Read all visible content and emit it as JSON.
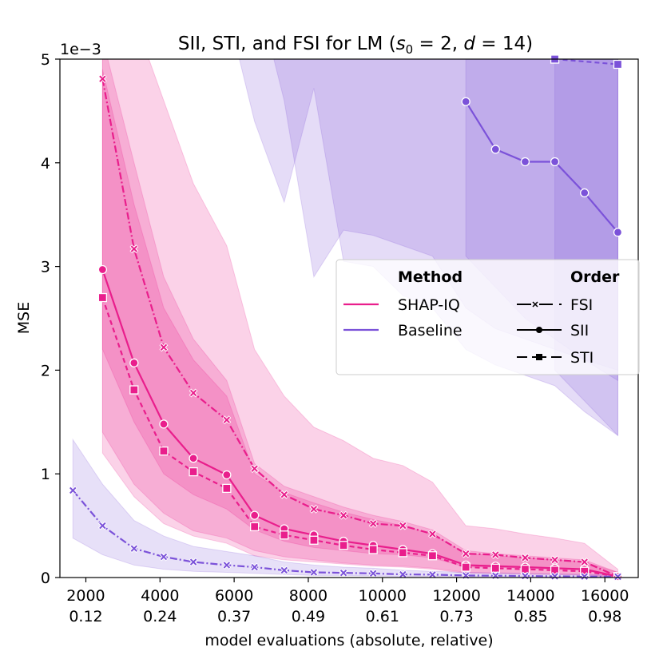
{
  "chart_data": {
    "type": "line",
    "title_prefix": "SII, STI, and FSI for LM (",
    "title_math": "s",
    "title_sub": "0",
    "title_mid": " = 2, ",
    "title_d": "d",
    "title_suffix": " = 14)",
    "xlabel": "model evaluations (absolute, relative)",
    "ylabel": "MSE",
    "y_scale_label": "1e−3",
    "xlim": [
      1300,
      16900
    ],
    "ylim": [
      0,
      5
    ],
    "x_ticks": [
      {
        "value": 2000,
        "abs": "2000",
        "rel": "0.12"
      },
      {
        "value": 4000,
        "abs": "4000",
        "rel": "0.24"
      },
      {
        "value": 6000,
        "abs": "6000",
        "rel": "0.37"
      },
      {
        "value": 8000,
        "abs": "8000",
        "rel": "0.49"
      },
      {
        "value": 10000,
        "abs": "10000",
        "rel": "0.61"
      },
      {
        "value": 12000,
        "abs": "12000",
        "rel": "0.73"
      },
      {
        "value": 14000,
        "abs": "14000",
        "rel": "0.85"
      },
      {
        "value": 16000,
        "abs": "16000",
        "rel": "0.98"
      }
    ],
    "y_ticks": [
      "0",
      "1",
      "2",
      "3",
      "4",
      "5"
    ],
    "colors": {
      "shapiq": "#e91e8c",
      "baseline": "#7b52d9"
    },
    "series": [
      {
        "method": "SHAP-IQ",
        "order": "SII",
        "x": [
          2450,
          3300,
          4100,
          4900,
          5800,
          6550,
          7350,
          8150,
          8950,
          9750,
          10550,
          11350,
          12250,
          13050,
          13850,
          14650,
          15450,
          16350
        ],
        "y": [
          2.97,
          2.07,
          1.48,
          1.15,
          0.99,
          0.6,
          0.47,
          0.41,
          0.35,
          0.31,
          0.27,
          0.23,
          0.12,
          0.11,
          0.1,
          0.09,
          0.08,
          0.01
        ],
        "lower": [
          1.4,
          0.9,
          0.62,
          0.45,
          0.38,
          0.26,
          0.2,
          0.17,
          0.14,
          0.12,
          0.11,
          0.09,
          0.05,
          0.04,
          0.04,
          0.03,
          0.03,
          0.0
        ],
        "upper": [
          5.2,
          4.0,
          2.9,
          2.3,
          1.9,
          1.1,
          0.88,
          0.78,
          0.68,
          0.6,
          0.54,
          0.46,
          0.26,
          0.23,
          0.21,
          0.19,
          0.17,
          0.05
        ]
      },
      {
        "method": "SHAP-IQ",
        "order": "STI",
        "x": [
          2450,
          3300,
          4100,
          4900,
          5800,
          6550,
          7350,
          8150,
          8950,
          9750,
          10550,
          11350,
          12250,
          13050,
          13850,
          14650,
          15450,
          16350
        ],
        "y": [
          2.7,
          1.81,
          1.22,
          1.02,
          0.86,
          0.49,
          0.41,
          0.36,
          0.31,
          0.27,
          0.24,
          0.21,
          0.1,
          0.09,
          0.08,
          0.07,
          0.06,
          0.01
        ],
        "lower": [
          1.2,
          0.78,
          0.52,
          0.4,
          0.33,
          0.21,
          0.17,
          0.15,
          0.13,
          0.11,
          0.1,
          0.08,
          0.04,
          0.04,
          0.03,
          0.03,
          0.02,
          0.0
        ],
        "upper": [
          4.9,
          3.6,
          2.6,
          2.1,
          1.75,
          1.0,
          0.82,
          0.72,
          0.63,
          0.56,
          0.5,
          0.42,
          0.23,
          0.21,
          0.19,
          0.17,
          0.15,
          0.05
        ]
      },
      {
        "method": "SHAP-IQ",
        "order": "FSI",
        "x": [
          2450,
          3300,
          4100,
          4900,
          5800,
          6550,
          7350,
          8150,
          8950,
          9750,
          10550,
          11350,
          12250,
          13050,
          13850,
          14650,
          15450,
          16350
        ],
        "y": [
          4.81,
          3.17,
          2.22,
          1.78,
          1.52,
          1.05,
          0.8,
          0.66,
          0.6,
          0.52,
          0.5,
          0.42,
          0.23,
          0.22,
          0.19,
          0.17,
          0.15,
          0.01
        ],
        "lower": [
          2.2,
          1.5,
          1.0,
          0.8,
          0.66,
          0.46,
          0.35,
          0.29,
          0.26,
          0.23,
          0.22,
          0.19,
          0.1,
          0.1,
          0.09,
          0.08,
          0.07,
          0.0
        ],
        "upper": [
          5.6,
          5.4,
          4.6,
          3.8,
          3.2,
          2.2,
          1.75,
          1.45,
          1.32,
          1.15,
          1.08,
          0.92,
          0.5,
          0.47,
          0.42,
          0.38,
          0.33,
          0.08
        ]
      },
      {
        "method": "Baseline",
        "order": "SII",
        "x": [
          12250,
          13050,
          13850,
          14650,
          15450,
          16350
        ],
        "y": [
          4.59,
          4.13,
          4.01,
          4.01,
          3.71,
          3.33
        ],
        "lower": [
          3.1,
          2.8,
          2.5,
          2.3,
          2.1,
          1.9
        ],
        "upper": [
          5.6,
          5.6,
          5.6,
          5.6,
          5.6,
          5.6
        ]
      },
      {
        "method": "Baseline",
        "order": "STI",
        "x": [
          14650,
          16350
        ],
        "y": [
          5.0,
          4.95
        ],
        "lower": [
          2.0,
          1.37
        ],
        "upper": [
          5.6,
          5.6
        ]
      },
      {
        "method": "Baseline",
        "order": "FSI",
        "x": [
          1650,
          2450,
          3300,
          4100,
          4900,
          5800,
          6550,
          7350,
          8150,
          8950,
          9750,
          10550,
          11350,
          12250,
          13050,
          13850,
          14650,
          15450,
          16350
        ],
        "y": [
          0.84,
          0.5,
          0.28,
          0.2,
          0.15,
          0.12,
          0.1,
          0.07,
          0.05,
          0.045,
          0.04,
          0.03,
          0.028,
          0.02,
          0.018,
          0.015,
          0.012,
          0.01,
          0.008
        ],
        "lower": [
          0.38,
          0.22,
          0.12,
          0.08,
          0.06,
          0.05,
          0.04,
          0.03,
          0.02,
          0.02,
          0.015,
          0.01,
          0.01,
          0.008,
          0.007,
          0.006,
          0.005,
          0.004,
          0.003
        ],
        "upper": [
          1.33,
          0.9,
          0.55,
          0.4,
          0.3,
          0.25,
          0.21,
          0.15,
          0.12,
          0.1,
          0.09,
          0.07,
          0.06,
          0.05,
          0.045,
          0.04,
          0.035,
          0.03,
          0.025
        ]
      }
    ],
    "baseline_envelope": {
      "x": [
        2450,
        3300,
        4100,
        4900,
        5800,
        6550,
        7350,
        8150,
        8950,
        9750,
        10550,
        11350,
        12250,
        13050,
        13850,
        14650,
        15450,
        16350
      ],
      "lower": [
        5.6,
        5.6,
        5.6,
        5.6,
        5.5,
        4.4,
        3.62,
        4.72,
        3.05,
        3.0,
        2.72,
        2.6,
        2.2,
        2.05,
        1.95,
        1.85,
        1.6,
        1.37
      ],
      "upper": [
        5.6,
        5.6,
        5.6,
        5.6,
        5.6,
        5.6,
        5.6,
        5.6,
        5.6,
        5.6,
        5.6,
        5.6,
        5.6,
        5.6,
        5.6,
        5.6,
        5.6,
        5.6
      ]
    },
    "baseline_envelope2": {
      "x": [
        6650,
        7350,
        8150,
        8950,
        9750,
        10550,
        11350,
        12250,
        13050,
        13850,
        14650,
        15450,
        16350
      ],
      "lower": [
        5.6,
        4.6,
        2.9,
        3.35,
        3.3,
        3.2,
        3.1,
        2.6,
        2.4,
        2.3,
        2.2,
        2.1,
        2.0
      ],
      "upper": [
        5.6,
        5.6,
        5.6,
        5.6,
        5.6,
        5.6,
        5.6,
        5.6,
        5.6,
        5.6,
        5.6,
        5.6,
        5.6
      ]
    },
    "legend": {
      "placement": "center-right",
      "method_header": "Method",
      "order_header": "Order",
      "methods": [
        "SHAP-IQ",
        "Baseline"
      ],
      "orders": [
        "FSI",
        "SII",
        "STI"
      ]
    }
  }
}
